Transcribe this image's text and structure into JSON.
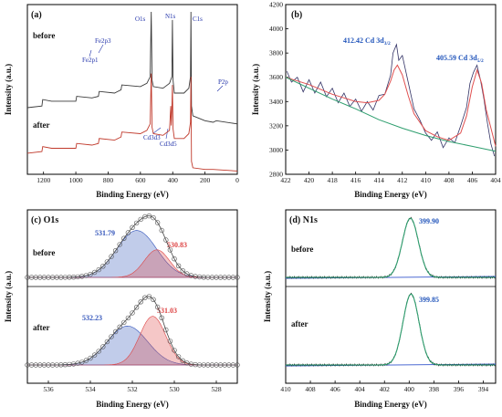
{
  "chart_data": [
    {
      "id": "a",
      "type": "line",
      "panel_label": "(a)",
      "xlabel": "Binding Energy (eV)",
      "ylabel": "Intensity (a.u.)",
      "x_reversed": true,
      "xlim": [
        1300,
        0
      ],
      "x_ticks": [
        1200,
        1000,
        800,
        600,
        400,
        200,
        0
      ],
      "series": [
        {
          "name": "before",
          "color": "#3a3a3a",
          "x": [
            1300,
            1210,
            1205,
            1150,
            1000,
            995,
            900,
            860,
            855,
            760,
            720,
            715,
            600,
            560,
            540,
            533,
            528,
            520,
            460,
            420,
            405,
            402,
            398,
            390,
            330,
            300,
            290,
            287,
            284,
            275,
            200,
            150,
            130,
            0
          ],
          "y": [
            0.41,
            0.42,
            0.46,
            0.45,
            0.45,
            0.48,
            0.47,
            0.48,
            0.51,
            0.5,
            0.52,
            0.55,
            0.54,
            0.56,
            0.6,
            1.0,
            0.58,
            0.54,
            0.53,
            0.56,
            0.6,
            0.95,
            0.58,
            0.5,
            0.5,
            0.53,
            0.6,
            1.0,
            0.42,
            0.36,
            0.33,
            0.32,
            0.33,
            0.31
          ]
        },
        {
          "name": "after",
          "color": "#c0392b",
          "x": [
            1300,
            1210,
            1205,
            1150,
            1000,
            995,
            900,
            860,
            855,
            760,
            720,
            715,
            600,
            560,
            540,
            533,
            528,
            520,
            460,
            420,
            412,
            409,
            405,
            402,
            398,
            390,
            330,
            300,
            290,
            287,
            284,
            275,
            200,
            150,
            0
          ],
          "y": [
            0.13,
            0.14,
            0.17,
            0.16,
            0.16,
            0.19,
            0.18,
            0.19,
            0.22,
            0.21,
            0.23,
            0.26,
            0.25,
            0.27,
            0.31,
            0.62,
            0.29,
            0.25,
            0.24,
            0.27,
            0.42,
            0.3,
            0.4,
            0.55,
            0.28,
            0.22,
            0.22,
            0.25,
            0.32,
            0.6,
            0.08,
            0.04,
            0.03,
            0.03,
            0.02
          ]
        }
      ],
      "series_labels": [
        "before",
        "after"
      ],
      "annotations": [
        "Fe2p3",
        "Fe2p1",
        "O1s",
        "N1s",
        "C1s",
        "P2p",
        "Cd3d3",
        "Cd3d5"
      ]
    },
    {
      "id": "b",
      "type": "line",
      "panel_label": "(b)",
      "xlabel": "Binding Energy (eV)",
      "ylabel": "Intensity (a.u.)",
      "x_reversed": true,
      "xlim": [
        422,
        404
      ],
      "ylim": [
        2800,
        4200
      ],
      "x_ticks": [
        422,
        420,
        418,
        416,
        414,
        412,
        410,
        408,
        406,
        404
      ],
      "y_ticks": [
        2800,
        3000,
        3200,
        3400,
        3600,
        3800,
        4000,
        4200
      ],
      "peak_labels": [
        {
          "text": "412.42 Cd 3d",
          "sub": "3/2"
        },
        {
          "text": "405.59 Cd 3d",
          "sub": "5/2"
        }
      ],
      "series": [
        {
          "name": "raw",
          "color": "#333366",
          "x": [
            421.9,
            421.5,
            421,
            420.5,
            420,
            419.5,
            419,
            418.5,
            418,
            417.5,
            417,
            416.5,
            416,
            415.5,
            415,
            414.5,
            414,
            413.5,
            413,
            412.8,
            412.5,
            412.3,
            412,
            411.5,
            411,
            410.5,
            410,
            409.5,
            409,
            408.5,
            408,
            407.5,
            407,
            406.5,
            406.2,
            405.9,
            405.6,
            405.3,
            405,
            404.7,
            404.4,
            404.1
          ],
          "y": [
            3650,
            3560,
            3600,
            3480,
            3580,
            3470,
            3560,
            3440,
            3510,
            3390,
            3470,
            3360,
            3420,
            3320,
            3400,
            3330,
            3450,
            3460,
            3620,
            3800,
            3870,
            3740,
            3780,
            3560,
            3340,
            3250,
            3140,
            3080,
            3150,
            3020,
            3100,
            3060,
            3200,
            3350,
            3550,
            3640,
            3700,
            3580,
            3420,
            3220,
            3050,
            2950
          ]
        },
        {
          "name": "fit",
          "color": "#e05050",
          "x": [
            422,
            420,
            418,
            416,
            415,
            414,
            413.5,
            413,
            412.7,
            412.42,
            412,
            411.5,
            411,
            410,
            409,
            408,
            407,
            406.5,
            406,
            405.59,
            405.2,
            404.8,
            404
          ],
          "y": [
            3600,
            3540,
            3460,
            3400,
            3390,
            3410,
            3460,
            3570,
            3660,
            3700,
            3620,
            3450,
            3300,
            3160,
            3110,
            3080,
            3140,
            3280,
            3520,
            3660,
            3550,
            3330,
            3030
          ]
        },
        {
          "name": "background",
          "color": "#2e9e6e",
          "x": [
            422,
            420,
            418,
            416,
            414,
            412,
            410,
            408,
            406,
            404
          ],
          "y": [
            3600,
            3510,
            3420,
            3340,
            3250,
            3180,
            3120,
            3070,
            3030,
            2990
          ]
        }
      ]
    },
    {
      "id": "c",
      "type": "area",
      "panel_label": "(c) O1s",
      "xlabel": "Binding Energy (eV)",
      "ylabel": "Intensity (a.u.)",
      "x_reversed": true,
      "xlim": [
        537,
        527
      ],
      "x_ticks": [
        536,
        534,
        532,
        530,
        528
      ],
      "groups": [
        {
          "label": "before",
          "peaks": [
            {
              "center": 531.79,
              "label": "531.79",
              "color": "#3355bb",
              "amp": 0.34,
              "sigma": 0.95
            },
            {
              "center": 530.83,
              "label": "530.83",
              "color": "#dd4444",
              "amp": 0.2,
              "sigma": 0.6
            }
          ]
        },
        {
          "label": "after",
          "peaks": [
            {
              "center": 532.23,
              "label": "532.23",
              "color": "#3355bb",
              "amp": 0.24,
              "sigma": 0.95
            },
            {
              "center": 531.03,
              "label": "531.03",
              "color": "#dd4444",
              "amp": 0.3,
              "sigma": 0.62
            }
          ]
        }
      ]
    },
    {
      "id": "d",
      "type": "line",
      "panel_label": "(d) N1s",
      "xlabel": "Binding Energy (eV)",
      "ylabel": "Intensity (a.u.)",
      "x_reversed": true,
      "xlim": [
        410,
        393
      ],
      "x_ticks": [
        410,
        408,
        406,
        404,
        402,
        400,
        398,
        396,
        394
      ],
      "groups": [
        {
          "label": "before",
          "peak_label": "399.90",
          "center": 399.9,
          "amp": 0.72,
          "sigma": 0.65
        },
        {
          "label": "after",
          "peak_label": "399.85",
          "center": 399.85,
          "amp": 0.74,
          "sigma": 0.65
        }
      ]
    }
  ]
}
